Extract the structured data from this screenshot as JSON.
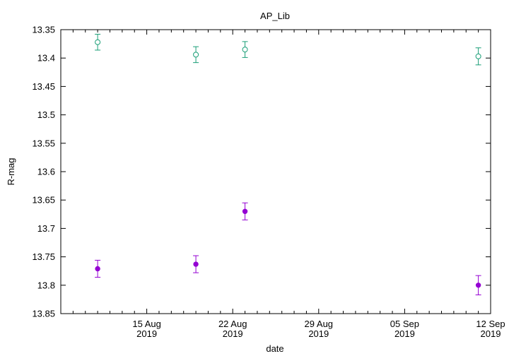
{
  "chart_data": {
    "type": "scatter",
    "title": "AP_Lib",
    "xlabel": "date",
    "ylabel": "R-mag",
    "y_inverted": true,
    "ylim": [
      13.85,
      13.35
    ],
    "xlim": [
      "2019-08-08",
      "2019-09-12"
    ],
    "grid": false,
    "legend": "none",
    "y_ticks": [
      "13.35",
      "13.4",
      "13.45",
      "13.5",
      "13.55",
      "13.6",
      "13.65",
      "13.7",
      "13.75",
      "13.8",
      "13.85"
    ],
    "x_ticks": [
      {
        "date": "2019-08-15",
        "line1": "15 Aug",
        "line2": "2019"
      },
      {
        "date": "2019-08-22",
        "line1": "22 Aug",
        "line2": "2019"
      },
      {
        "date": "2019-08-29",
        "line1": "29 Aug",
        "line2": "2019"
      },
      {
        "date": "2019-09-05",
        "line1": "05 Sep",
        "line2": "2019"
      },
      {
        "date": "2019-09-12",
        "line1": "12 Sep",
        "line2": "2019"
      }
    ],
    "series": [
      {
        "color": "#1a9e77",
        "marker": "open-circle",
        "points": [
          {
            "x": "2019-08-11T00:00",
            "y": 13.372,
            "err": 0.014
          },
          {
            "x": "2019-08-19T00:00",
            "y": 13.394,
            "err": 0.014
          },
          {
            "x": "2019-08-23T00:00",
            "y": 13.385,
            "err": 0.014
          },
          {
            "x": "2019-09-11T00:00",
            "y": 13.397,
            "err": 0.015
          }
        ]
      },
      {
        "color": "#9400d3",
        "marker": "filled-circle",
        "points": [
          {
            "x": "2019-08-11T00:00",
            "y": 13.771,
            "err": 0.015
          },
          {
            "x": "2019-08-19T00:00",
            "y": 13.763,
            "err": 0.015
          },
          {
            "x": "2019-08-23T00:00",
            "y": 13.67,
            "err": 0.015
          },
          {
            "x": "2019-09-11T00:00",
            "y": 13.8,
            "err": 0.017
          }
        ]
      }
    ]
  }
}
